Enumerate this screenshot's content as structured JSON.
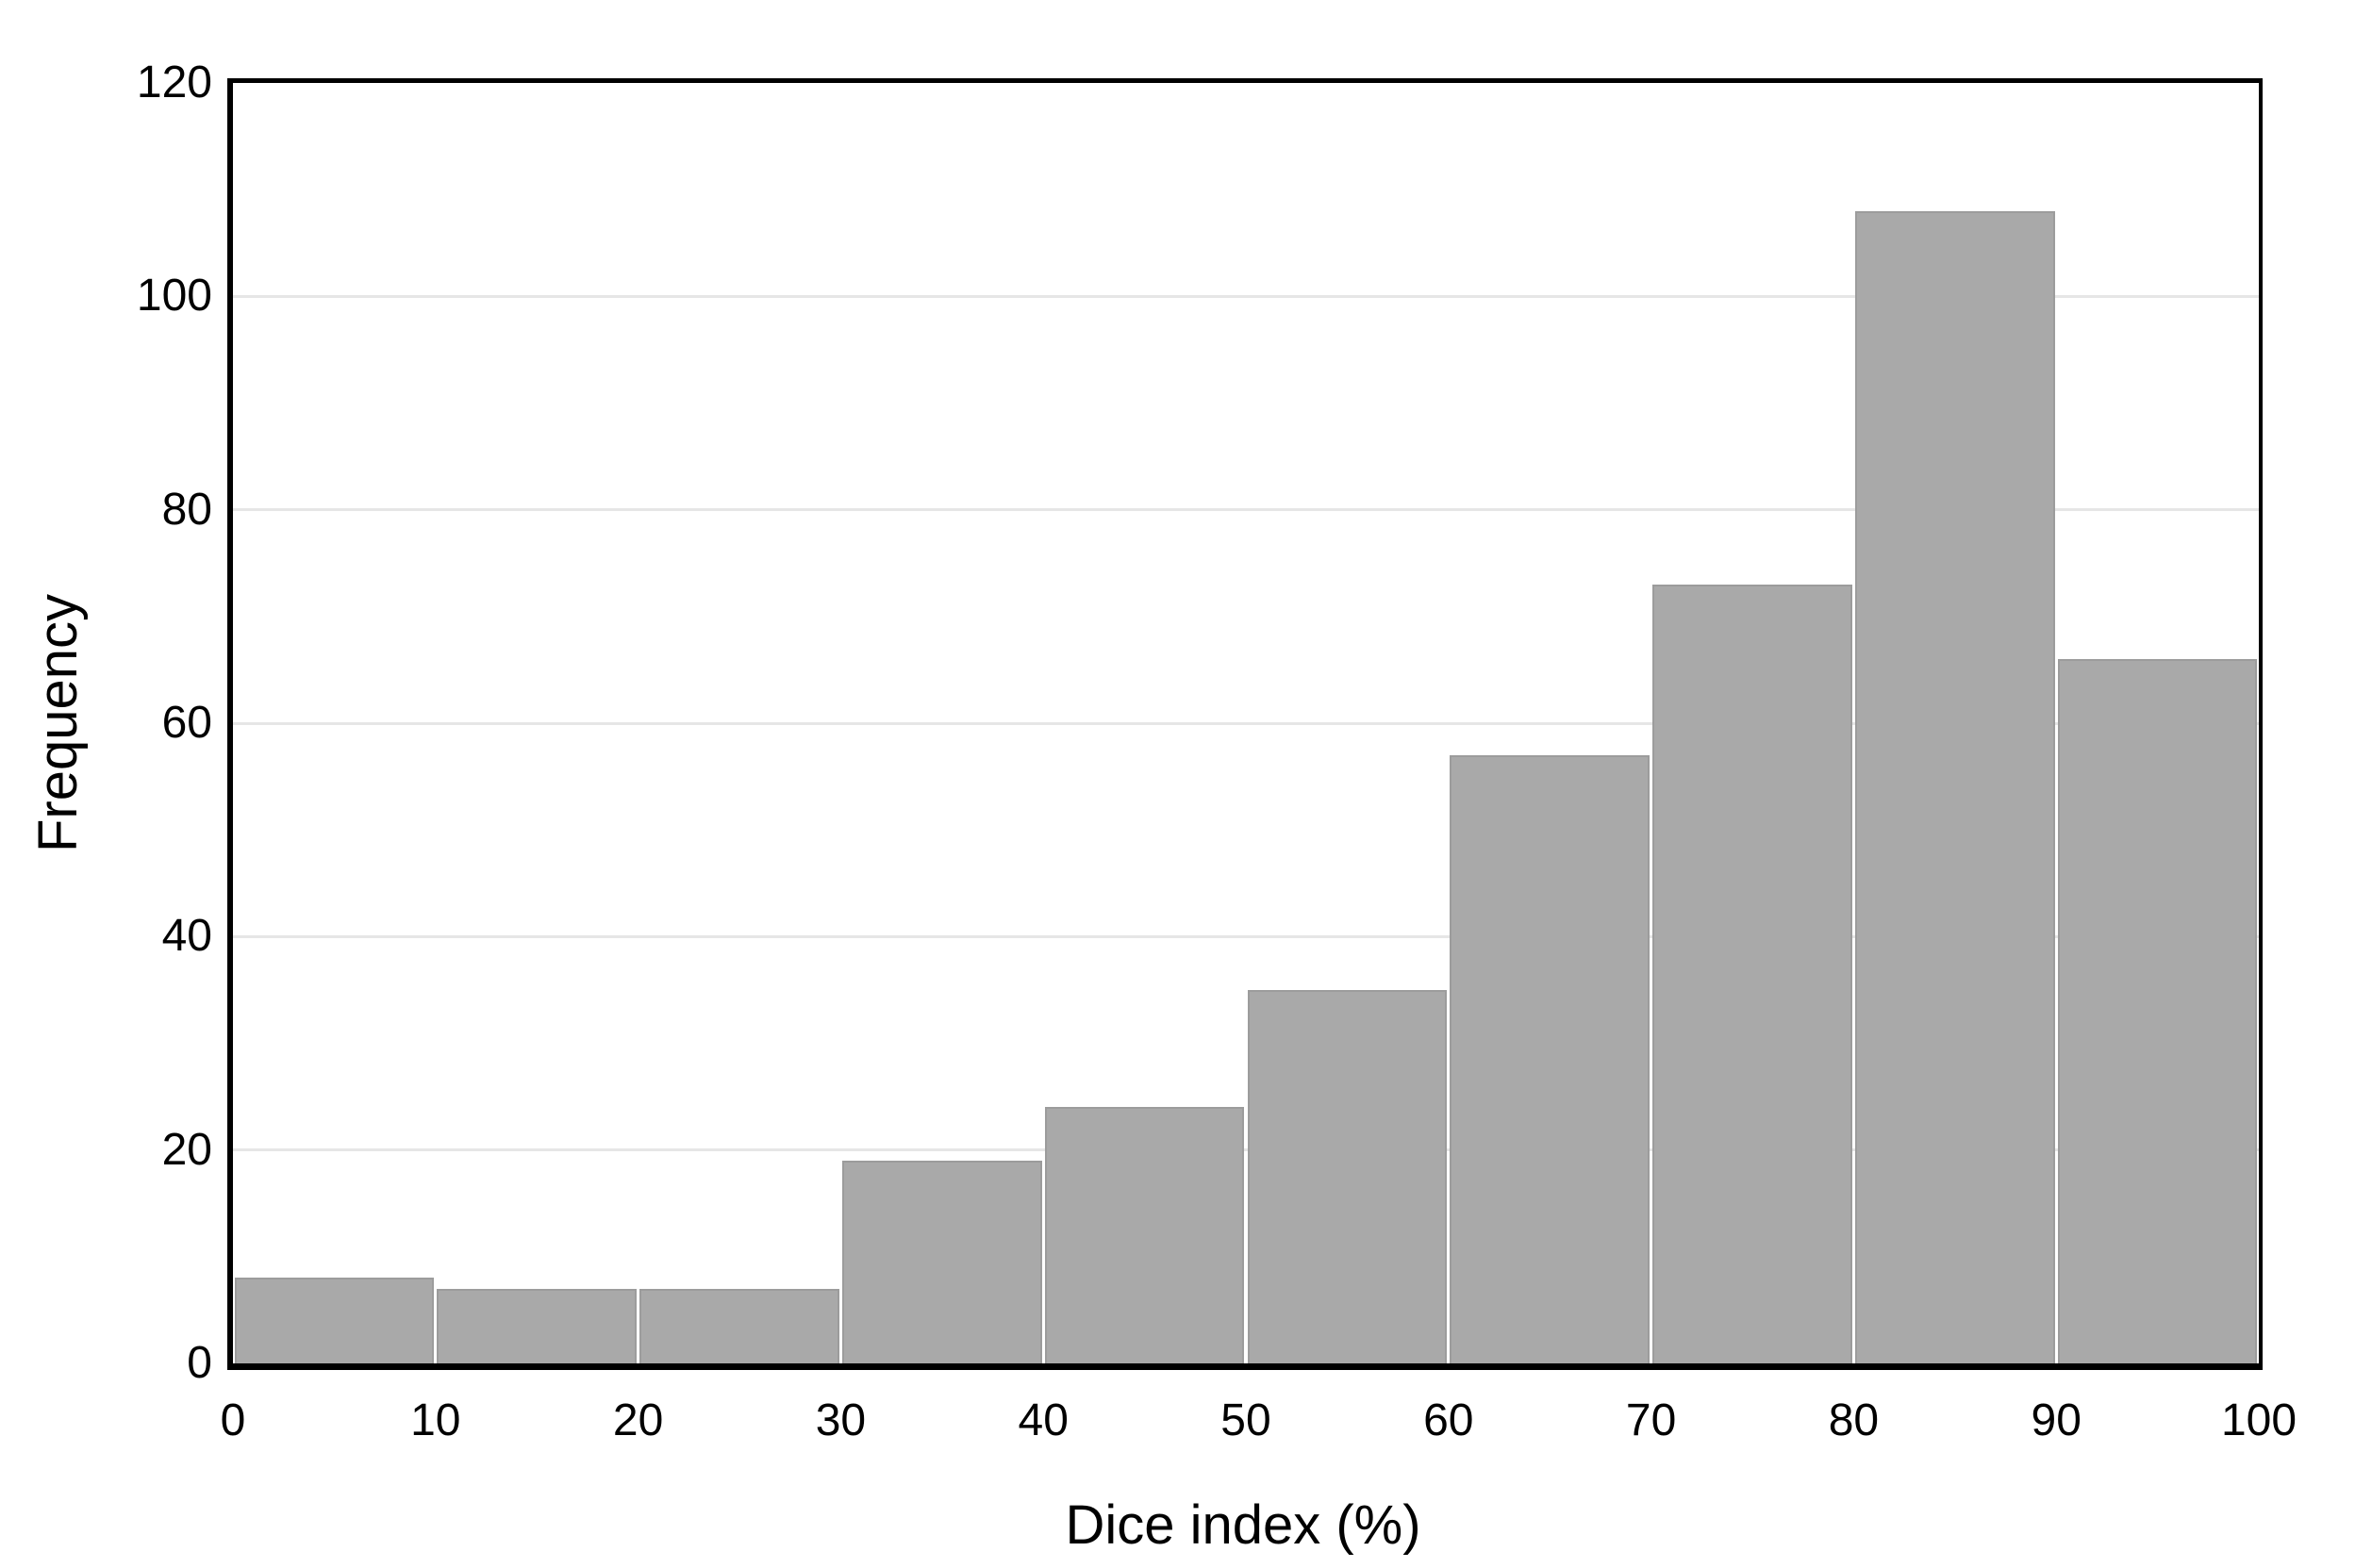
{
  "chart_data": {
    "type": "bar",
    "subtype": "histogram",
    "title": "",
    "xlabel": "Dice index (%)",
    "ylabel": "Frequency",
    "categories": [
      "0-10",
      "10-20",
      "20-30",
      "30-40",
      "40-50",
      "50-60",
      "60-70",
      "70-80",
      "80-90",
      "90-100"
    ],
    "values": [
      8,
      7,
      7,
      19,
      24,
      35,
      57,
      73,
      108,
      66
    ],
    "x_ticks": [
      0,
      10,
      20,
      30,
      40,
      50,
      60,
      70,
      80,
      90,
      100
    ],
    "y_ticks": [
      0,
      20,
      40,
      60,
      80,
      100,
      120
    ],
    "xlim": [
      0,
      100
    ],
    "ylim": [
      0,
      120
    ],
    "grid": "horizontal-major",
    "gridline_values": [
      20,
      40,
      60,
      80,
      100
    ],
    "legend": "none",
    "colors": {
      "bar_fill": "#a9a9a9",
      "bar_border": "#9c9c9c",
      "gridline": "#e6e6e6",
      "frame": "#000000",
      "background": "#ffffff",
      "text": "#000000"
    }
  }
}
